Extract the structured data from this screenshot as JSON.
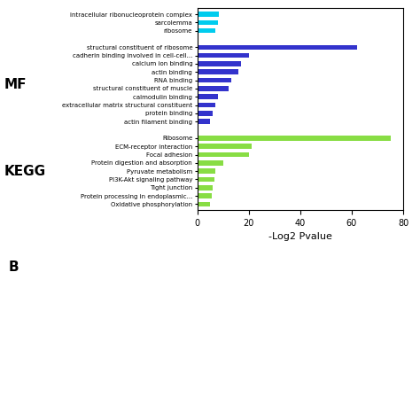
{
  "chart_data": {
    "type": "bar",
    "orientation": "horizontal",
    "xlabel": "-Log2 Pvalue",
    "xlim": [
      0,
      80
    ],
    "xticks": [
      0,
      20,
      40,
      60,
      80
    ],
    "groups": [
      {
        "color": "#00CCEE",
        "categories": [
          "intracellular ribonucleoprotein complex",
          "sarcolemma",
          "ribosome"
        ],
        "values": [
          8.5,
          8.0,
          7.0
        ]
      },
      {
        "label": "MF",
        "color": "#3333CC",
        "categories": [
          "structural constituent of ribosome",
          "cadherin binding involved in cell-cell...",
          "calcium ion binding",
          "actin binding",
          "RNA binding",
          "structural constituent of muscle",
          "calmodulin binding",
          "extracellular matrix structural constituent",
          "protein binding",
          "actin filament binding"
        ],
        "values": [
          62,
          20,
          17,
          16,
          13,
          12,
          8,
          7,
          6,
          5
        ]
      },
      {
        "label": "KEGG",
        "color": "#88DD44",
        "categories": [
          "Ribosome",
          "ECM-receptor interaction",
          "Focal adhesion",
          "Protein digestion and absorption",
          "Pyruvate metabolism",
          "PI3K-Akt signaling pathway",
          "Tight junction",
          "Protein processing in endoplasmic...",
          "Oxidative phosphorylation"
        ],
        "values": [
          75,
          21,
          20,
          10,
          7,
          6.5,
          6,
          5.5,
          5
        ]
      }
    ],
    "annotations": [
      "B"
    ]
  }
}
